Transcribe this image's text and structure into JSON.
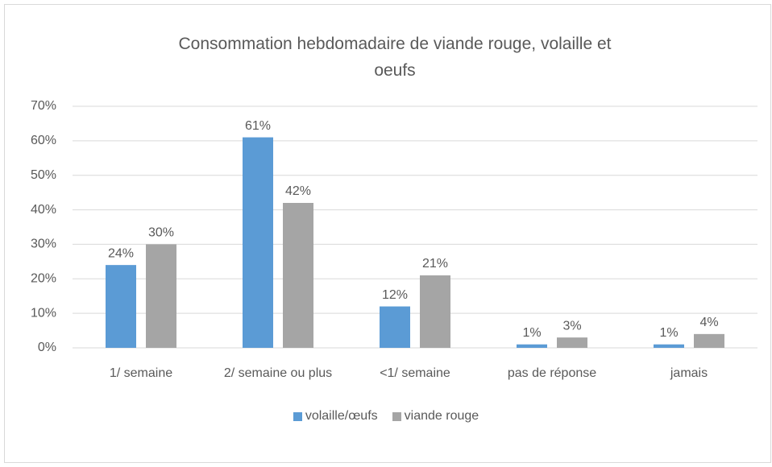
{
  "chart_data": {
    "type": "bar",
    "title": "Consommation hebdomadaire de viande rouge, volaille et oeufs",
    "categories": [
      "1/ semaine",
      "2/ semaine ou plus",
      "<1/ semaine",
      "pas de réponse",
      "jamais"
    ],
    "series": [
      {
        "name": "volaille/œufs",
        "color": "#5b9bd5",
        "values": [
          24,
          61,
          12,
          1,
          1
        ],
        "value_labels": [
          "24%",
          "61%",
          "12%",
          "1%",
          "1%"
        ]
      },
      {
        "name": "viande rouge",
        "color": "#a5a5a5",
        "values": [
          30,
          42,
          21,
          3,
          4
        ],
        "value_labels": [
          "30%",
          "42%",
          "21%",
          "3%",
          "4%"
        ]
      }
    ],
    "ylim": [
      0,
      70
    ],
    "yticks": [
      {
        "value": 0,
        "label": "0%"
      },
      {
        "value": 10,
        "label": "10%"
      },
      {
        "value": 20,
        "label": "20%"
      },
      {
        "value": 30,
        "label": "30%"
      },
      {
        "value": 40,
        "label": "40%"
      },
      {
        "value": 50,
        "label": "50%"
      },
      {
        "value": 60,
        "label": "60%"
      },
      {
        "value": 70,
        "label": "70%"
      }
    ],
    "grid": true,
    "legend": "bottom"
  }
}
